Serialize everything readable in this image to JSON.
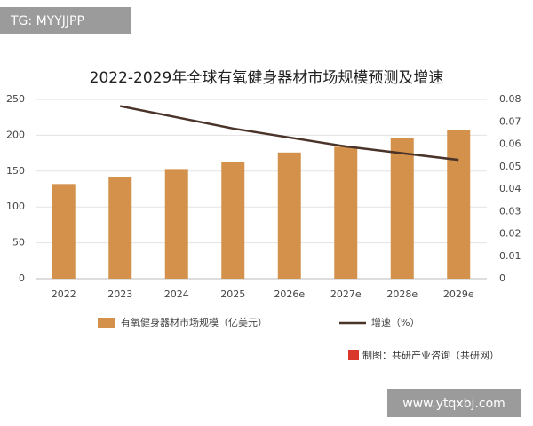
{
  "chart_data": {
    "type": "bar-line",
    "tag": "TG: MYYJJPP",
    "title": "2022-2029年全球有氧健身器材市场规模预测及增速",
    "categories": [
      "2022",
      "2023",
      "2024",
      "2025",
      "2026e",
      "2027e",
      "2028e",
      "2029e"
    ],
    "series": [
      {
        "name": "有氧健身器材市场规模（亿美元）",
        "color": "#d4914b",
        "values": [
          132,
          142,
          153,
          163,
          176,
          184,
          196,
          207
        ]
      },
      {
        "name": "增速（%）",
        "color": "#4a3328",
        "axis": "y2",
        "values": [
          null,
          0.077,
          0.072,
          0.067,
          0.063,
          0.059,
          0.056,
          0.053
        ]
      }
    ],
    "ylim": [
      0,
      250
    ],
    "yticks": [
      0,
      50,
      100,
      150,
      200,
      250
    ],
    "y2lim": [
      0,
      0.08
    ],
    "y2ticks": [
      0,
      0.01,
      0.02,
      0.03,
      0.04,
      0.05,
      0.06,
      0.07,
      0.08
    ],
    "grid": true,
    "source": "制图：共研产业咨询（共研网）",
    "url": "www.ytqxbj.com"
  }
}
